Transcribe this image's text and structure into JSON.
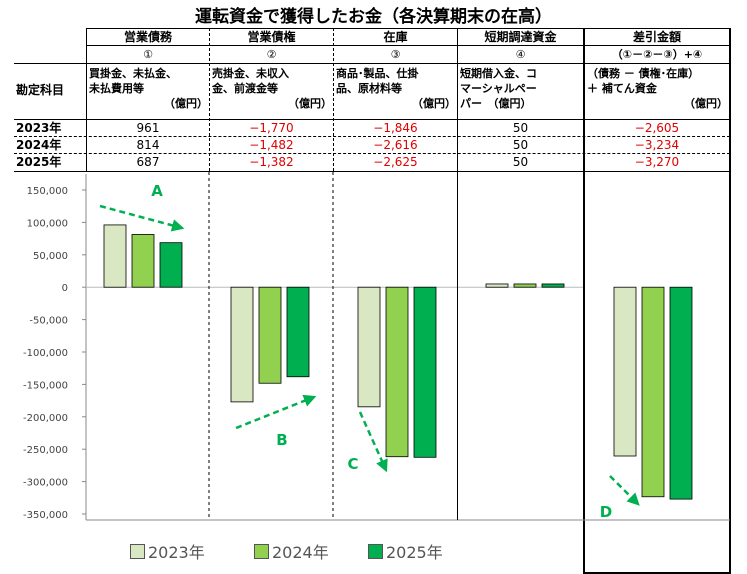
{
  "title": "運転資金で獲得したお金（各決算期末の在高）",
  "table": {
    "corner_label": "勘定科目",
    "columns": [
      {
        "header": "営業債務",
        "number": "①",
        "desc": [
          "買掛金、未払金、",
          "未払費用等",
          "（億円）"
        ]
      },
      {
        "header": "営業債権",
        "number": "②",
        "desc": [
          "売掛金、未収入",
          "金、前渡金等",
          "（億円）"
        ]
      },
      {
        "header": "在庫",
        "number": "③",
        "desc": [
          "商品･製品、仕掛",
          "品、原材料等",
          "（億円）"
        ]
      },
      {
        "header": "短期調達資金",
        "number": "④",
        "desc": [
          "短期借入金、コ",
          "マーシャルペー",
          "パー　（億円）"
        ]
      },
      {
        "header": "差引金額",
        "number": "（①－②－③）+④",
        "desc": [
          "（債務 － 債権･在庫）",
          "＋ 補てん資金",
          "（億円）"
        ]
      }
    ],
    "rows": [
      {
        "label": "2023年",
        "values": [
          "961",
          "−1,770",
          "−1,846",
          "50",
          "−2,605"
        ]
      },
      {
        "label": "2024年",
        "values": [
          "814",
          "−1,482",
          "−2,616",
          "50",
          "−3,234"
        ]
      },
      {
        "label": "2025年",
        "values": [
          "687",
          "−1,382",
          "−2,625",
          "50",
          "−3,270"
        ]
      }
    ]
  },
  "chart_data": {
    "type": "bar",
    "categories": [
      "営業債務",
      "営業債権",
      "在庫",
      "短期調達資金",
      "差引金額"
    ],
    "series": [
      {
        "name": "2023年",
        "color": "#d9e7c3",
        "values": [
          96100,
          -177000,
          -184600,
          5000,
          -260500
        ]
      },
      {
        "name": "2024年",
        "color": "#92d050",
        "values": [
          81400,
          -148200,
          -261600,
          5000,
          -323400
        ]
      },
      {
        "name": "2025年",
        "color": "#00b050",
        "values": [
          68700,
          -138200,
          -262500,
          5000,
          -327000
        ]
      }
    ],
    "ylim": [
      -350000,
      150000
    ],
    "yticks": [
      150000,
      100000,
      50000,
      0,
      -50000,
      -100000,
      -150000,
      -200000,
      -250000,
      -300000,
      -350000
    ],
    "ytick_labels": [
      "150,000",
      "100,000",
      "50,000",
      "0",
      "-50,000",
      "-100,000",
      "-150,000",
      "-200,000",
      "-250,000",
      "-300,000",
      "-350,000"
    ],
    "grid": false,
    "legend": "bottom",
    "annotations": [
      "A",
      "B",
      "C",
      "D"
    ],
    "annotation_color": "#00b050"
  }
}
